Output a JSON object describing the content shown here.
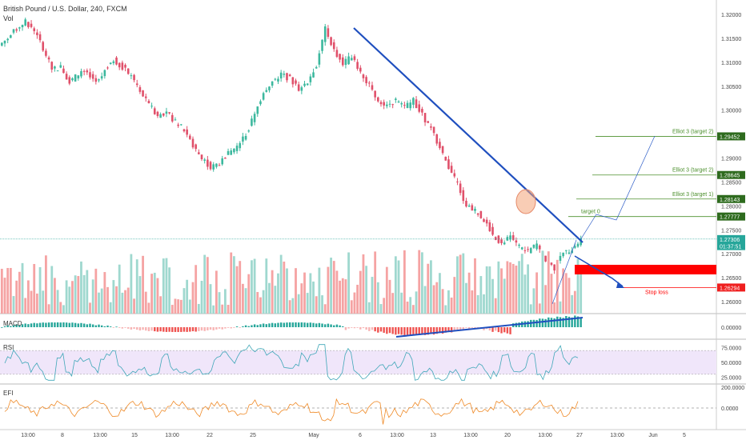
{
  "header": {
    "symbol": "British Pound / U.S. Dollar, 240, FXCM",
    "vol_label": "Vol"
  },
  "colors": {
    "up": "#26a69a",
    "down": "#ef5350",
    "up_candle": "#3cb89e",
    "down_candle": "#e0506a",
    "trendline": "#1f4fbf",
    "target_line": "#4b8f2c",
    "stop": "#ff0000",
    "rsi_line": "#3fa7b8",
    "rsi_band": "#f0e6fa",
    "efi_line": "#ef8a27"
  },
  "chart_data": [
    {
      "type": "candlestick",
      "name": "price",
      "title": "British Pound / U.S. Dollar, 240, FXCM",
      "ylim": [
        1.2555,
        1.3215
      ],
      "price_ticks": [
        "1.32000",
        "1.31500",
        "1.31000",
        "1.30500",
        "1.30000",
        "1.29500",
        "1.29000",
        "1.28500",
        "1.28000",
        "1.27500",
        "1.27000",
        "1.26500",
        "1.26000"
      ],
      "x_ticks": [
        "13:00",
        "8",
        "13:00",
        "15",
        "13:00",
        "22",
        "25",
        "May",
        "6",
        "13:00",
        "13",
        "13:00",
        "20",
        "13:00",
        "27",
        "13:00",
        "Jun",
        "5"
      ],
      "close_path": [
        1.315,
        1.317,
        1.3185,
        1.3165,
        1.313,
        1.3085,
        1.309,
        1.306,
        1.3075,
        1.308,
        1.306,
        1.3085,
        1.3105,
        1.309,
        1.307,
        1.304,
        1.301,
        1.299,
        1.2995,
        1.2975,
        1.296,
        1.2925,
        1.29,
        1.288,
        1.289,
        1.291,
        1.2925,
        1.295,
        1.299,
        1.304,
        1.306,
        1.3075,
        1.3065,
        1.3045,
        1.306,
        1.3095,
        1.317,
        1.3125,
        1.3095,
        1.3115,
        1.308,
        1.305,
        1.302,
        1.301,
        1.302,
        1.3005,
        1.302,
        1.299,
        1.296,
        1.292,
        1.288,
        1.2845,
        1.28,
        1.279,
        1.277,
        1.274,
        1.272,
        1.2735,
        1.2715,
        1.2705,
        1.272,
        1.2685,
        1.267,
        1.27,
        1.271,
        1.273
      ],
      "price_labels": [
        {
          "text": "1.29452",
          "value": 1.29452,
          "bg": "#2e6b1e"
        },
        {
          "text": "1.28645",
          "value": 1.28645,
          "bg": "#2e6b1e"
        },
        {
          "text": "1.28143",
          "value": 1.28143,
          "bg": "#2e6b1e"
        },
        {
          "text": "1.27777",
          "value": 1.27777,
          "bg": "#2e6b1e"
        },
        {
          "text": "1.27306",
          "value": 1.27306,
          "bg": "#26a69a"
        },
        {
          "text": "01:37:51",
          "value": 1.2716,
          "bg": "#26a69a"
        },
        {
          "text": "1.26294",
          "value": 1.26294,
          "bg": "#ef1e1e"
        }
      ],
      "annotations": [
        {
          "text": "Elliot 3 (target 2)",
          "value": 1.29452
        },
        {
          "text": "Elliot 3 (target 2)",
          "value": 1.28645
        },
        {
          "text": "Elliot 3 (target 1)",
          "value": 1.28143
        },
        {
          "text": "target 0",
          "value": 1.27777
        },
        {
          "text": "Stop loss",
          "value": 1.26294
        }
      ]
    },
    {
      "type": "bar",
      "name": "MACD",
      "label": "MACD",
      "ticks": [
        "0.00000"
      ]
    },
    {
      "type": "line",
      "name": "RSI",
      "label": "RSI",
      "ticks": [
        "75.0000",
        "50.0000",
        "25.0000"
      ],
      "ylim": [
        15,
        85
      ],
      "band": [
        30,
        70
      ]
    },
    {
      "type": "line",
      "name": "EFI",
      "label": "EFI",
      "ticks": [
        "200.0000",
        "0.0000"
      ]
    }
  ]
}
